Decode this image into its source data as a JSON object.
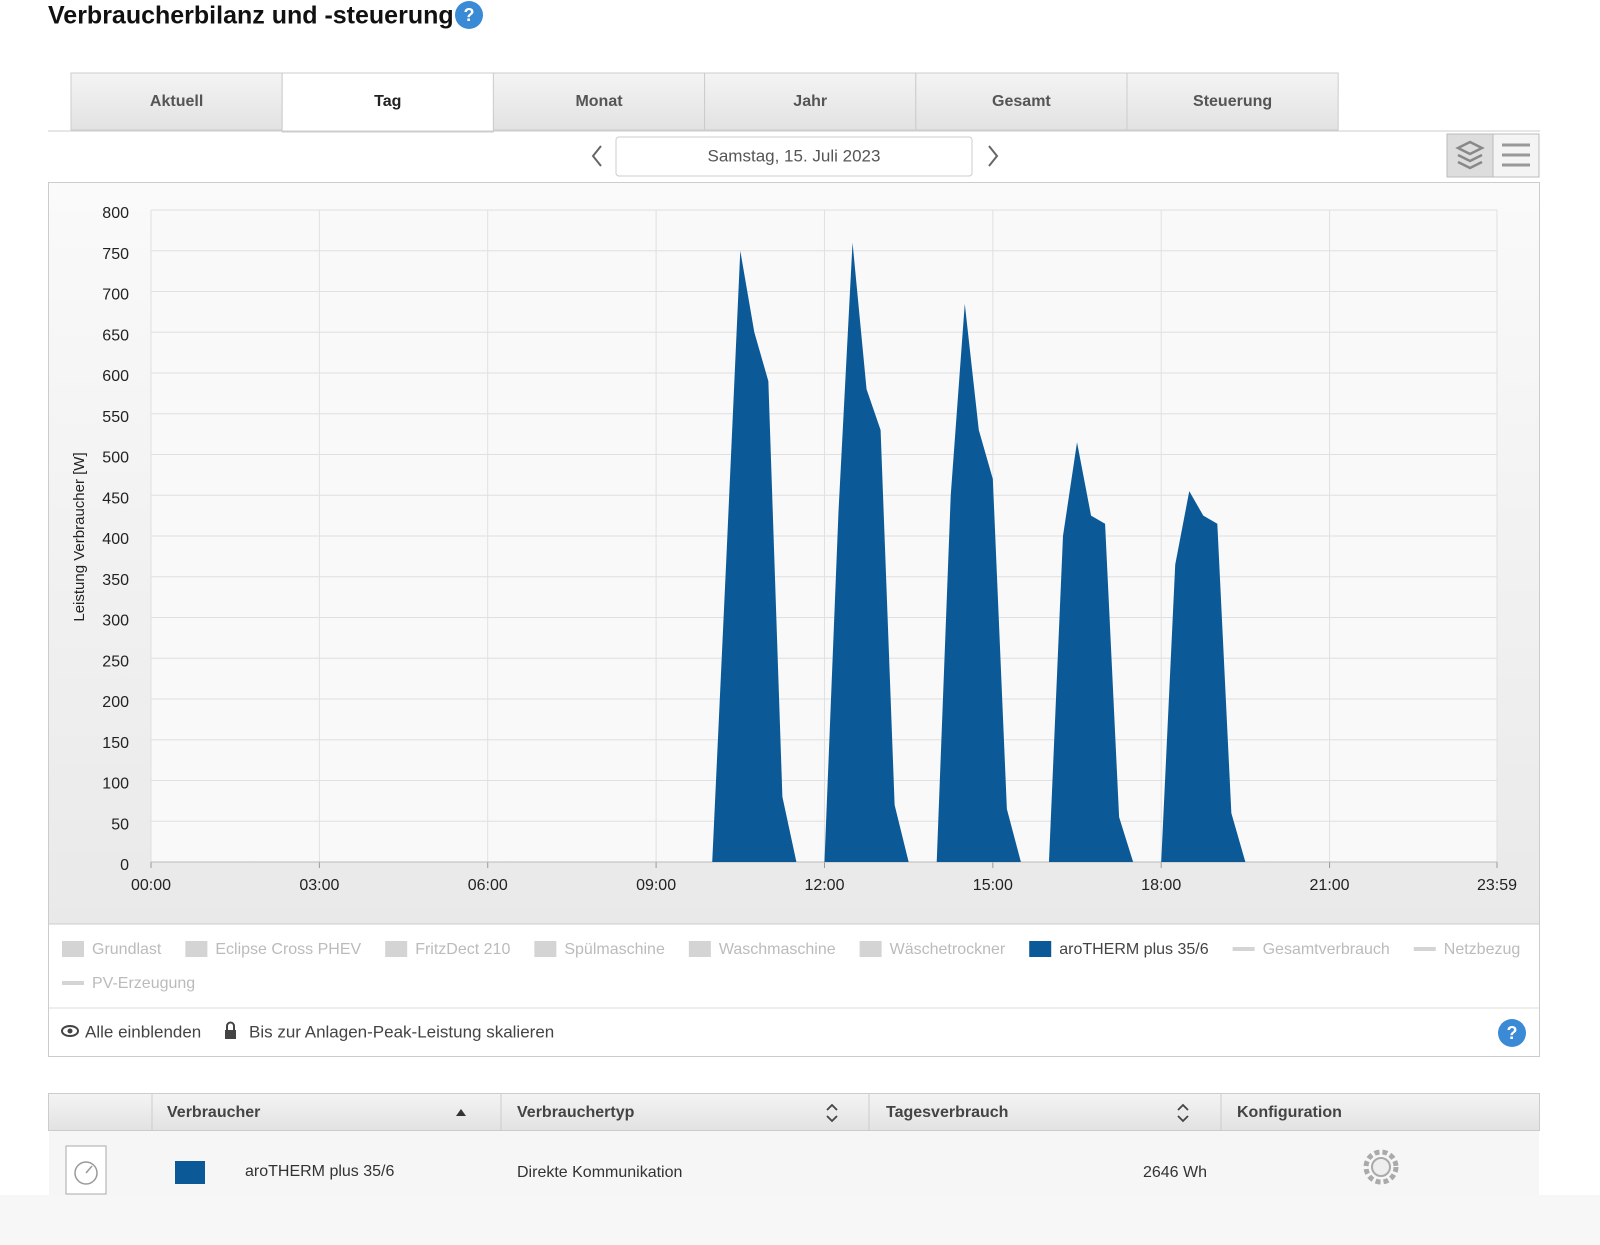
{
  "header": {
    "title": "Verbraucherbilanz und -steuerung"
  },
  "tabs": {
    "items": [
      "Aktuell",
      "Tag",
      "Monat",
      "Jahr",
      "Gesamt",
      "Steuerung"
    ],
    "selected": 1
  },
  "date": "Samstag, 15. Juli 2023",
  "chart_data": {
    "type": "area",
    "y_label": "Leistung Verbraucher [W]",
    "x": [
      600,
      615,
      630,
      645,
      660,
      675,
      690,
      720,
      735,
      750,
      765,
      780,
      795,
      810,
      840,
      855,
      870,
      885,
      900,
      915,
      930,
      960,
      975,
      990,
      1005,
      1020,
      1035,
      1050,
      1080,
      1095,
      1110,
      1125,
      1140,
      1155,
      1170
    ],
    "series": [
      {
        "name": "aroTHERM plus 35/6",
        "color": "#0b5a97",
        "values": [
          0,
          370,
          750,
          650,
          590,
          80,
          0,
          0,
          430,
          760,
          580,
          530,
          70,
          0,
          0,
          450,
          685,
          530,
          470,
          65,
          0,
          0,
          400,
          515,
          425,
          415,
          55,
          0,
          0,
          365,
          455,
          425,
          415,
          60,
          0
        ]
      }
    ],
    "xlim": [
      0,
      1439
    ],
    "xticks": [
      {
        "value": 0,
        "label": "00:00"
      },
      {
        "value": 180,
        "label": "03:00"
      },
      {
        "value": 360,
        "label": "06:00"
      },
      {
        "value": 540,
        "label": "09:00"
      },
      {
        "value": 720,
        "label": "12:00"
      },
      {
        "value": 900,
        "label": "15:00"
      },
      {
        "value": 1080,
        "label": "18:00"
      },
      {
        "value": 1260,
        "label": "21:00"
      },
      {
        "value": 1439,
        "label": "23:59"
      }
    ],
    "ylim": [
      0,
      800
    ],
    "yticks": [
      0,
      50,
      100,
      150,
      200,
      250,
      300,
      350,
      400,
      450,
      500,
      550,
      600,
      650,
      700,
      750,
      800
    ],
    "grid": true
  },
  "hidden_series": [
    {
      "name": "Grundlast",
      "kind": "area"
    },
    {
      "name": "Eclipse Cross PHEV",
      "kind": "area"
    },
    {
      "name": "FritzDect 210",
      "kind": "area"
    },
    {
      "name": "Spülmaschine",
      "kind": "area"
    },
    {
      "name": "Waschmaschine",
      "kind": "area"
    },
    {
      "name": "Wäschetrockner",
      "kind": "area"
    },
    {
      "name": "Gesamtverbrauch",
      "kind": "line"
    },
    {
      "name": "Netzbezug",
      "kind": "line"
    },
    {
      "name": "PV-Erzeugung",
      "kind": "line"
    }
  ],
  "options": [
    "Alle einblenden",
    "Bis zur Anlagen-Peak-Leistung skalieren"
  ],
  "table": {
    "headers": [
      "Verbraucher",
      "Verbrauchertyp",
      "Tagesverbrauch",
      "Konfiguration"
    ],
    "rows": [
      [
        "aroTHERM plus 35/6",
        "Direkte Kommunikation",
        "2646 Wh"
      ]
    ]
  }
}
